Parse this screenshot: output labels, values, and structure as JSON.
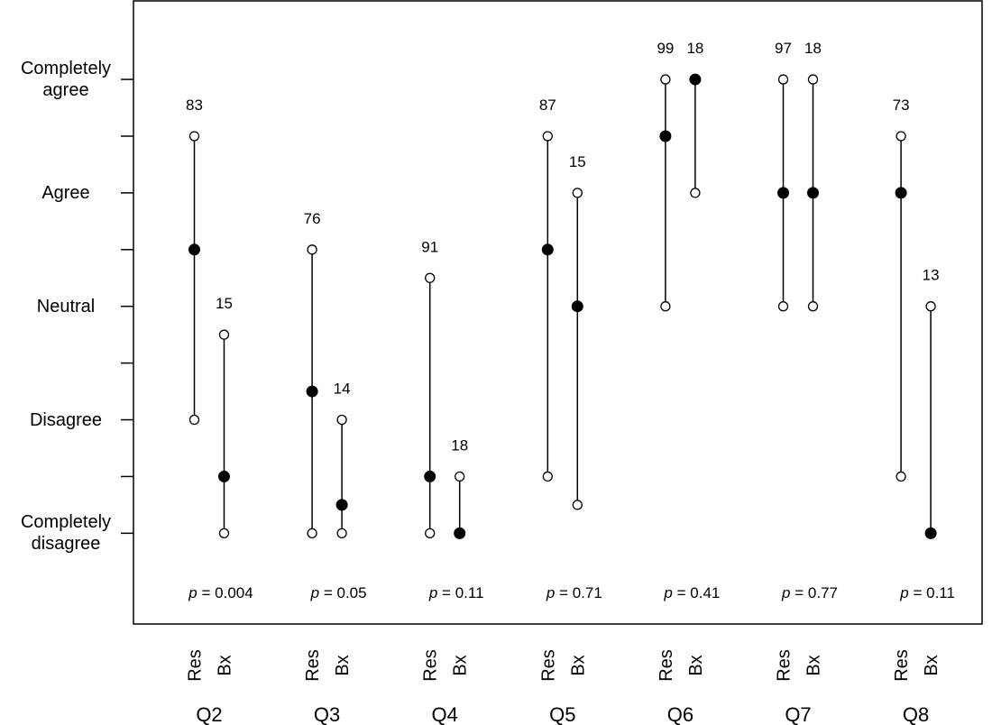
{
  "chart_data": {
    "type": "range",
    "categories": [
      "Q2",
      "Q3",
      "Q4",
      "Q5",
      "Q6",
      "Q7",
      "Q8"
    ],
    "series": [
      {
        "name": "Res",
        "low": [
          2,
          1,
          1,
          1.5,
          3,
          3,
          1.5
        ],
        "median": [
          3.5,
          2.25,
          1.5,
          3.5,
          4.5,
          4,
          4
        ],
        "high": [
          4.5,
          3.5,
          3.25,
          4.5,
          5,
          5,
          4.5
        ],
        "n": [
          83,
          76,
          91,
          87,
          99,
          97,
          73
        ]
      },
      {
        "name": "Bx",
        "low": [
          1,
          1,
          1,
          1.25,
          4,
          3,
          1
        ],
        "median": [
          1.5,
          1.25,
          1,
          3,
          5,
          4,
          1
        ],
        "high": [
          2.75,
          2,
          1.5,
          4,
          5,
          5,
          3
        ],
        "n": [
          15,
          14,
          18,
          15,
          18,
          18,
          13
        ]
      }
    ],
    "p_symbol": "p",
    "p_equals": "=",
    "p_values": [
      0.004,
      0.05,
      0.11,
      0.71,
      0.41,
      0.77,
      0.11
    ],
    "ylim": [
      0.2,
      5.7
    ],
    "yticks": [
      {
        "value": 1,
        "label": "Completely disagree"
      },
      {
        "value": 2,
        "label": "Disagree"
      },
      {
        "value": 3,
        "label": "Neutral"
      },
      {
        "value": 4,
        "label": "Agree"
      },
      {
        "value": 5,
        "label": "Completely agree"
      }
    ],
    "minor_yticks": [
      1.5,
      2.5,
      3.5,
      4.5
    ]
  }
}
